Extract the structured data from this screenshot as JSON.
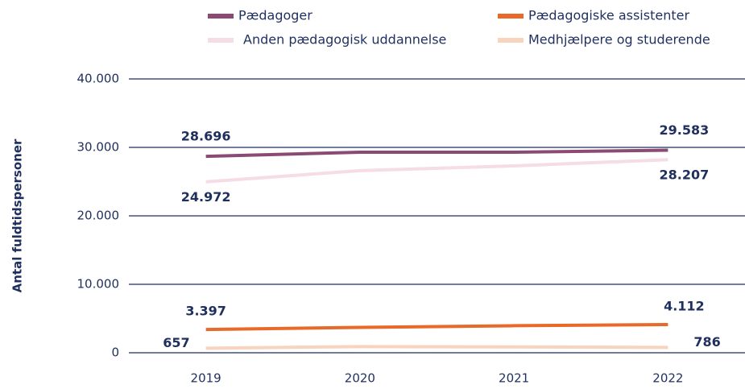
{
  "chart_data": {
    "type": "line",
    "y_label": "Antal fuldtidspersoner",
    "categories": [
      "2019",
      "2020",
      "2021",
      "2022"
    ],
    "series": [
      {
        "name": "Pædagoger",
        "color": "#8b4a72",
        "values": [
          28696,
          29300,
          29300,
          29583
        ],
        "value_labels": [
          "28.696",
          null,
          null,
          "29.583"
        ]
      },
      {
        "name": "Pædagogiske assistenter",
        "color": "#e8692a",
        "values": [
          3397,
          3700,
          3950,
          4112
        ],
        "value_labels": [
          "3.397",
          null,
          null,
          "4.112"
        ]
      },
      {
        "name": "Anden pædagogisk uddannelse",
        "color": "#f5dce6",
        "values": [
          24972,
          26600,
          27300,
          28207
        ],
        "value_labels": [
          "24.972",
          null,
          null,
          "28.207"
        ]
      },
      {
        "name": "Medhjælpere og studerende",
        "color": "#f8d3bd",
        "values": [
          657,
          900,
          850,
          786
        ],
        "value_labels": [
          "657",
          null,
          null,
          "786"
        ]
      }
    ],
    "ylim": [
      0,
      40000
    ],
    "yticks": [
      0,
      {
        "value": 10000,
        "label": "10.000"
      },
      {
        "value": 20000,
        "label": "20.000"
      },
      {
        "value": 30000,
        "label": "30.000"
      },
      {
        "value": 40000,
        "label": "40.000"
      }
    ],
    "grid": true
  }
}
